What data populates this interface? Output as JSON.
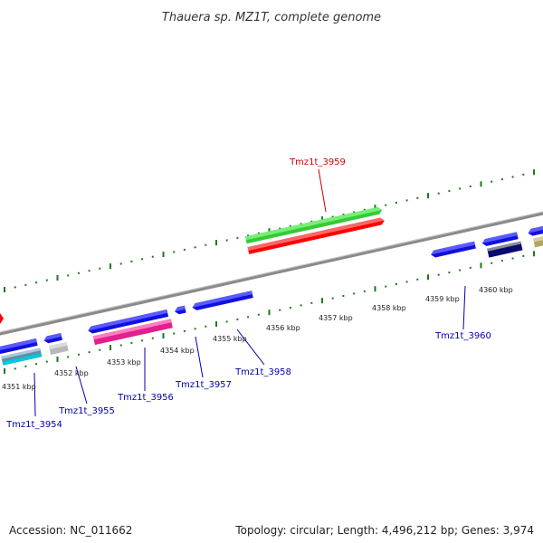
{
  "title": "Thauera sp. MZ1T, complete genome",
  "footer": {
    "accession": "Accession: NC_011662",
    "summary": "Topology: circular; Length: 4,496,212 bp; Genes: 3,974"
  },
  "colors": {
    "backbone": "#8a8a8a",
    "tick": "#1a7a1a",
    "label_highlight": "#cc0000",
    "label_default": "#0000aa"
  },
  "scale_labels": [
    "4351 kbp",
    "4352 kbp",
    "4353 kbp",
    "4354 kbp",
    "4355 kbp",
    "4356 kbp",
    "4357 kbp",
    "4358 kbp",
    "4359 kbp",
    "4360 kbp"
  ],
  "gene_labels": [
    {
      "name": "Tmz1t_3954",
      "highlight": false
    },
    {
      "name": "Tmz1t_3955",
      "highlight": false
    },
    {
      "name": "Tmz1t_3956",
      "highlight": false
    },
    {
      "name": "Tmz1t_3957",
      "highlight": false
    },
    {
      "name": "Tmz1t_3958",
      "highlight": false
    },
    {
      "name": "Tmz1t_3959",
      "highlight": true
    },
    {
      "name": "Tmz1t_3960",
      "highlight": false
    }
  ]
}
